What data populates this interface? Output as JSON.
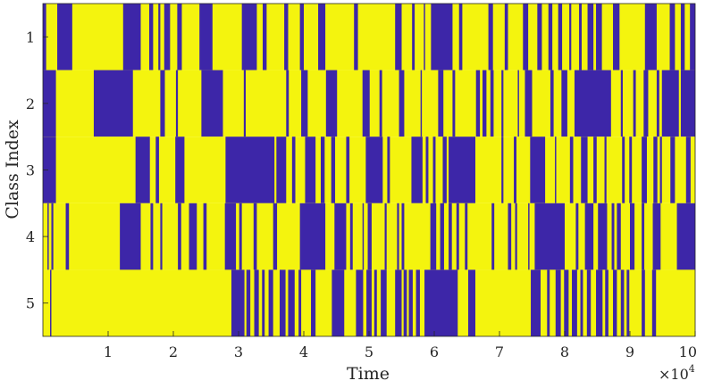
{
  "chart_data": {
    "type": "heatmap",
    "title": "",
    "xlabel": "Time",
    "ylabel": "Class Index",
    "x_exponent_label": "×10",
    "x_exponent_power": "4",
    "xlim": [
      0,
      100000
    ],
    "x_ticks": [
      10000,
      20000,
      30000,
      40000,
      50000,
      60000,
      70000,
      80000,
      90000,
      100000
    ],
    "x_tick_labels": [
      "1",
      "2",
      "3",
      "4",
      "5",
      "6",
      "7",
      "8",
      "9",
      "10"
    ],
    "y_categories": [
      "1",
      "2",
      "3",
      "4",
      "5"
    ],
    "grid": false,
    "colors": {
      "active": "#3D26A8",
      "inactive": "#F4F40E"
    },
    "legend": "none",
    "active_intervals": {
      "1": [
        [
          0,
          500
        ],
        [
          2200,
          4500
        ],
        [
          12300,
          15000
        ],
        [
          16300,
          16900
        ],
        [
          17700,
          18000
        ],
        [
          18600,
          19500
        ],
        [
          20600,
          21300
        ],
        [
          24000,
          26000
        ],
        [
          30500,
          32800
        ],
        [
          33700,
          34300
        ],
        [
          37000,
          37600
        ],
        [
          39400,
          40000
        ],
        [
          42200,
          43300
        ],
        [
          47700,
          48300
        ],
        [
          54000,
          55000
        ],
        [
          56600,
          57000
        ],
        [
          58400,
          58600
        ],
        [
          59500,
          62800
        ],
        [
          63800,
          64300
        ],
        [
          68300,
          69000
        ],
        [
          70800,
          71300
        ],
        [
          73600,
          74400
        ],
        [
          75800,
          76500
        ],
        [
          77500,
          78100
        ],
        [
          79000,
          79600
        ],
        [
          80700,
          81000
        ],
        [
          82200,
          82600
        ],
        [
          83500,
          84400
        ],
        [
          84800,
          85700
        ],
        [
          87400,
          88400
        ],
        [
          92300,
          94100
        ],
        [
          96100,
          96900
        ],
        [
          97800,
          98400
        ],
        [
          99200,
          100000
        ]
      ],
      "2": [
        [
          0,
          2000
        ],
        [
          7800,
          13800
        ],
        [
          18000,
          18700
        ],
        [
          20400,
          20700
        ],
        [
          24300,
          27600
        ],
        [
          30800,
          31100
        ],
        [
          37300,
          37700
        ],
        [
          39600,
          40600
        ],
        [
          43400,
          45100
        ],
        [
          49000,
          50100
        ],
        [
          51600,
          52000
        ],
        [
          54600,
          55400
        ],
        [
          57900,
          58100
        ],
        [
          60600,
          61400
        ],
        [
          62800,
          63200
        ],
        [
          66400,
          67000
        ],
        [
          67400,
          68000
        ],
        [
          68600,
          69100
        ],
        [
          70300,
          70600
        ],
        [
          72800,
          73000
        ],
        [
          73900,
          75000
        ],
        [
          77800,
          78300
        ],
        [
          79500,
          80400
        ],
        [
          81500,
          87100
        ],
        [
          88600,
          88900
        ],
        [
          90500,
          90900
        ],
        [
          92100,
          92800
        ],
        [
          94100,
          94500
        ],
        [
          94900,
          97500
        ],
        [
          97800,
          100000
        ]
      ],
      "3": [
        [
          0,
          2000
        ],
        [
          14200,
          16400
        ],
        [
          17300,
          17800
        ],
        [
          20300,
          21700
        ],
        [
          28000,
          35500
        ],
        [
          35800,
          37300
        ],
        [
          38200,
          38700
        ],
        [
          40200,
          41800
        ],
        [
          42600,
          43200
        ],
        [
          44200,
          44800
        ],
        [
          46500,
          47000
        ],
        [
          49500,
          52100
        ],
        [
          52800,
          53200
        ],
        [
          56500,
          58200
        ],
        [
          58700,
          59100
        ],
        [
          59800,
          60200
        ],
        [
          61300,
          61900
        ],
        [
          62200,
          66300
        ],
        [
          70300,
          70600
        ],
        [
          72200,
          72600
        ],
        [
          74700,
          77000
        ],
        [
          78500,
          78700
        ],
        [
          80800,
          81300
        ],
        [
          82500,
          83500
        ],
        [
          84400,
          84900
        ],
        [
          86100,
          86400
        ],
        [
          88800,
          89200
        ],
        [
          89900,
          90300
        ],
        [
          91800,
          92600
        ],
        [
          93600,
          94200
        ],
        [
          94600,
          94900
        ],
        [
          96200,
          96900
        ],
        [
          98600,
          99300
        ]
      ],
      "4": [
        [
          700,
          900
        ],
        [
          1300,
          1600
        ],
        [
          3500,
          4000
        ],
        [
          11800,
          15000
        ],
        [
          16500,
          16900
        ],
        [
          18000,
          18300
        ],
        [
          20700,
          21200
        ],
        [
          22400,
          23600
        ],
        [
          24600,
          25100
        ],
        [
          27900,
          29600
        ],
        [
          30100,
          30500
        ],
        [
          32300,
          32800
        ],
        [
          35300,
          35900
        ],
        [
          39400,
          43300
        ],
        [
          44700,
          46500
        ],
        [
          47100,
          47500
        ],
        [
          49000,
          49200
        ],
        [
          49800,
          50400
        ],
        [
          52400,
          52700
        ],
        [
          54300,
          54600
        ],
        [
          55000,
          55400
        ],
        [
          59400,
          60300
        ],
        [
          60900,
          61500
        ],
        [
          62200,
          62700
        ],
        [
          63400,
          63800
        ],
        [
          64700,
          65100
        ],
        [
          68800,
          69200
        ],
        [
          71300,
          71800
        ],
        [
          72400,
          72700
        ],
        [
          74400,
          74600
        ],
        [
          75400,
          80000
        ],
        [
          81700,
          82100
        ],
        [
          83100,
          84400
        ],
        [
          85100,
          86500
        ],
        [
          87200,
          87600
        ],
        [
          88000,
          88600
        ],
        [
          90000,
          90700
        ],
        [
          91800,
          92200
        ],
        [
          93500,
          94700
        ],
        [
          97200,
          100000
        ]
      ],
      "5": [
        [
          1100,
          1300
        ],
        [
          28900,
          30900
        ],
        [
          31200,
          31800
        ],
        [
          32400,
          33100
        ],
        [
          33600,
          34000
        ],
        [
          34600,
          35300
        ],
        [
          36300,
          37200
        ],
        [
          37600,
          38600
        ],
        [
          39200,
          39600
        ],
        [
          41100,
          41800
        ],
        [
          44300,
          46200
        ],
        [
          48000,
          49100
        ],
        [
          49600,
          50400
        ],
        [
          50800,
          51200
        ],
        [
          51800,
          52700
        ],
        [
          54000,
          55000
        ],
        [
          55300,
          55800
        ],
        [
          56100,
          56700
        ],
        [
          57200,
          57800
        ],
        [
          58500,
          63600
        ],
        [
          65200,
          66300
        ],
        [
          74800,
          76300
        ],
        [
          77300,
          77700
        ],
        [
          78600,
          79400
        ],
        [
          79900,
          80600
        ],
        [
          81100,
          81900
        ],
        [
          82400,
          82800
        ],
        [
          83400,
          84000
        ],
        [
          84800,
          85800
        ],
        [
          86200,
          86700
        ],
        [
          87400,
          88000
        ],
        [
          88600,
          89100
        ],
        [
          89500,
          89900
        ],
        [
          91800,
          92300
        ],
        [
          93400,
          94000
        ]
      ]
    }
  }
}
